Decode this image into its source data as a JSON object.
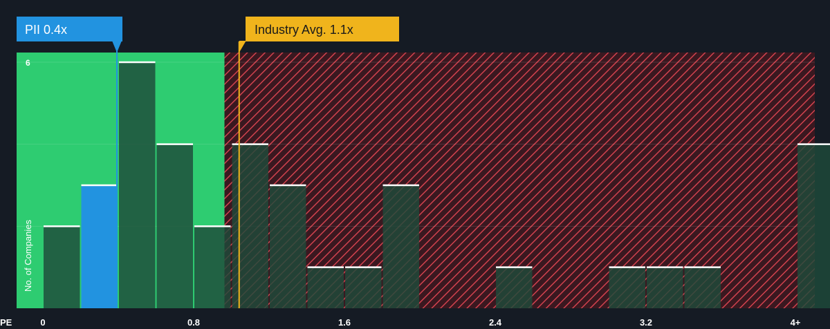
{
  "chart_data": {
    "type": "bar",
    "x_axis_label": "PE",
    "y_axis_label": "No. of Companies",
    "x_ticks": [
      "0",
      "0.8",
      "1.6",
      "2.4",
      "3.2",
      "4+"
    ],
    "x_tick_values": [
      0,
      0.8,
      1.6,
      2.4,
      3.2,
      4
    ],
    "y_ticks": [
      "6"
    ],
    "y_tick_values": [
      6
    ],
    "ylim": [
      0,
      6.2
    ],
    "bin_width": 0.2,
    "bins": [
      {
        "x": 0.0,
        "count": 2
      },
      {
        "x": 0.2,
        "count": 3,
        "highlight": true
      },
      {
        "x": 0.4,
        "count": 6
      },
      {
        "x": 0.6,
        "count": 4
      },
      {
        "x": 0.8,
        "count": 2
      },
      {
        "x": 1.0,
        "count": 4
      },
      {
        "x": 1.2,
        "count": 3
      },
      {
        "x": 1.4,
        "count": 1
      },
      {
        "x": 1.6,
        "count": 1
      },
      {
        "x": 1.8,
        "count": 3
      },
      {
        "x": 2.0,
        "count": 0
      },
      {
        "x": 2.2,
        "count": 0
      },
      {
        "x": 2.4,
        "count": 1
      },
      {
        "x": 2.6,
        "count": 0
      },
      {
        "x": 2.8,
        "count": 0
      },
      {
        "x": 3.0,
        "count": 1
      },
      {
        "x": 3.2,
        "count": 1
      },
      {
        "x": 3.4,
        "count": 1
      },
      {
        "x": 3.6,
        "count": 0
      },
      {
        "x": 3.8,
        "count": 0
      },
      {
        "x": 4.0,
        "count": 4
      }
    ],
    "company_marker": {
      "label": "PII 0.4x",
      "value": 0.4
    },
    "industry_marker": {
      "label": "Industry Avg. 1.1x",
      "value": 1.1
    },
    "fair_zone_end": 1.0,
    "colors": {
      "background": "#151b24",
      "green_zone": "#2ecc71",
      "red_zone": "#7a1f2a",
      "red_hatch": "#d2424e",
      "bar": "#1f4a3b",
      "highlight_bar": "#2293e0",
      "company_label_bg": "#2293e0",
      "industry_label_bg": "#f0b41c",
      "bar_top": "#ffffff",
      "axis_text": "#ffffff"
    }
  }
}
